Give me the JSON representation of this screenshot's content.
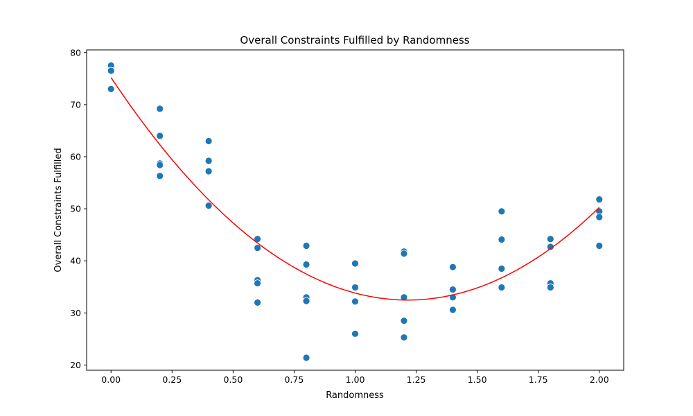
{
  "chart_data": {
    "type": "scatter",
    "title": "Overall Constraints Fulfilled by Randomness",
    "xlabel": "Randomness",
    "ylabel": "Overall Constraints Fulfilled",
    "xlim": [
      -0.1,
      2.1
    ],
    "ylim": [
      19,
      80.5
    ],
    "xticks": [
      "0.00",
      "0.25",
      "0.50",
      "0.75",
      "1.00",
      "1.25",
      "1.50",
      "1.75",
      "2.00"
    ],
    "yticks": [
      "20",
      "30",
      "40",
      "50",
      "60",
      "70",
      "80"
    ],
    "grid": false,
    "legend": "none",
    "point_color": "#1f77b4",
    "fit_color": "#ff0000",
    "points": [
      {
        "x": 0.0,
        "y": 77.5
      },
      {
        "x": 0.0,
        "y": 76.5
      },
      {
        "x": 0.0,
        "y": 73.0
      },
      {
        "x": 0.2,
        "y": 69.2
      },
      {
        "x": 0.2,
        "y": 64.0
      },
      {
        "x": 0.2,
        "y": 58.7
      },
      {
        "x": 0.2,
        "y": 58.4
      },
      {
        "x": 0.2,
        "y": 56.3
      },
      {
        "x": 0.4,
        "y": 63.0
      },
      {
        "x": 0.4,
        "y": 59.2
      },
      {
        "x": 0.4,
        "y": 57.2
      },
      {
        "x": 0.4,
        "y": 50.6
      },
      {
        "x": 0.6,
        "y": 44.2
      },
      {
        "x": 0.6,
        "y": 42.5
      },
      {
        "x": 0.6,
        "y": 36.3
      },
      {
        "x": 0.6,
        "y": 35.7
      },
      {
        "x": 0.6,
        "y": 32.0
      },
      {
        "x": 0.8,
        "y": 42.9
      },
      {
        "x": 0.8,
        "y": 39.3
      },
      {
        "x": 0.8,
        "y": 33.0
      },
      {
        "x": 0.8,
        "y": 32.3
      },
      {
        "x": 0.8,
        "y": 21.4
      },
      {
        "x": 1.0,
        "y": 39.5
      },
      {
        "x": 1.0,
        "y": 34.9
      },
      {
        "x": 1.0,
        "y": 32.2
      },
      {
        "x": 1.0,
        "y": 26.0
      },
      {
        "x": 1.2,
        "y": 41.8
      },
      {
        "x": 1.2,
        "y": 41.4
      },
      {
        "x": 1.2,
        "y": 33.0
      },
      {
        "x": 1.2,
        "y": 28.5
      },
      {
        "x": 1.2,
        "y": 25.3
      },
      {
        "x": 1.4,
        "y": 38.8
      },
      {
        "x": 1.4,
        "y": 34.5
      },
      {
        "x": 1.4,
        "y": 33.0
      },
      {
        "x": 1.4,
        "y": 30.6
      },
      {
        "x": 1.6,
        "y": 49.5
      },
      {
        "x": 1.6,
        "y": 44.1
      },
      {
        "x": 1.6,
        "y": 38.5
      },
      {
        "x": 1.6,
        "y": 34.9
      },
      {
        "x": 1.8,
        "y": 44.2
      },
      {
        "x": 1.8,
        "y": 42.7
      },
      {
        "x": 1.8,
        "y": 35.7
      },
      {
        "x": 1.8,
        "y": 34.9
      },
      {
        "x": 2.0,
        "y": 51.8
      },
      {
        "x": 2.0,
        "y": 49.5
      },
      {
        "x": 2.0,
        "y": 48.4
      },
      {
        "x": 2.0,
        "y": 42.9
      }
    ],
    "fit_line": {
      "type": "quadratic",
      "x_range": [
        0.0,
        2.0
      ],
      "coefficients": [
        28.91,
        -70.29,
        75.2
      ]
    }
  }
}
